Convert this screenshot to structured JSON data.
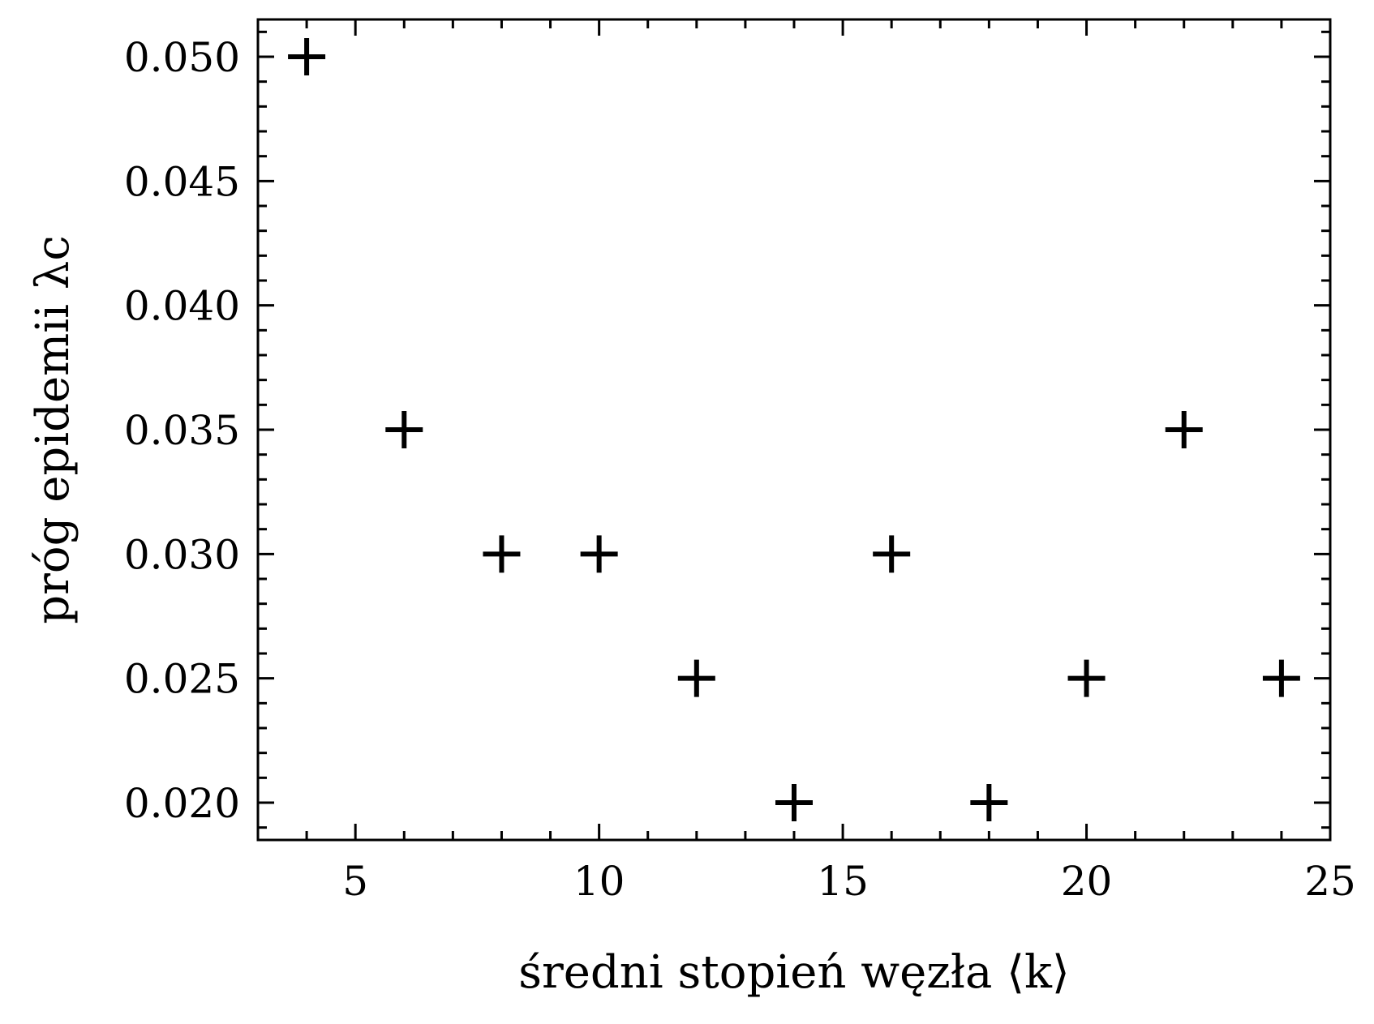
{
  "chart_data": {
    "type": "scatter",
    "title": "",
    "xlabel": "średni stopień węzła ⟨k⟩",
    "ylabel": "próg epidemii λc",
    "xlim": [
      3,
      25
    ],
    "ylim": [
      0.0185,
      0.0515
    ],
    "xticks": [
      5,
      10,
      15,
      20,
      25
    ],
    "xtick_labels": [
      "5",
      "10",
      "15",
      "20",
      "25"
    ],
    "yticks": [
      0.02,
      0.025,
      0.03,
      0.035,
      0.04,
      0.045,
      0.05
    ],
    "ytick_labels": [
      "0.020",
      "0.025",
      "0.030",
      "0.035",
      "0.040",
      "0.045",
      "0.050"
    ],
    "grid": false,
    "marker": "+",
    "color": "#000000",
    "series": [
      {
        "x": [
          4,
          6,
          8,
          10,
          12,
          14,
          16,
          18,
          20,
          22,
          24
        ],
        "y": [
          0.05,
          0.035,
          0.03,
          0.03,
          0.025,
          0.02,
          0.03,
          0.02,
          0.025,
          0.035,
          0.025
        ]
      }
    ]
  }
}
